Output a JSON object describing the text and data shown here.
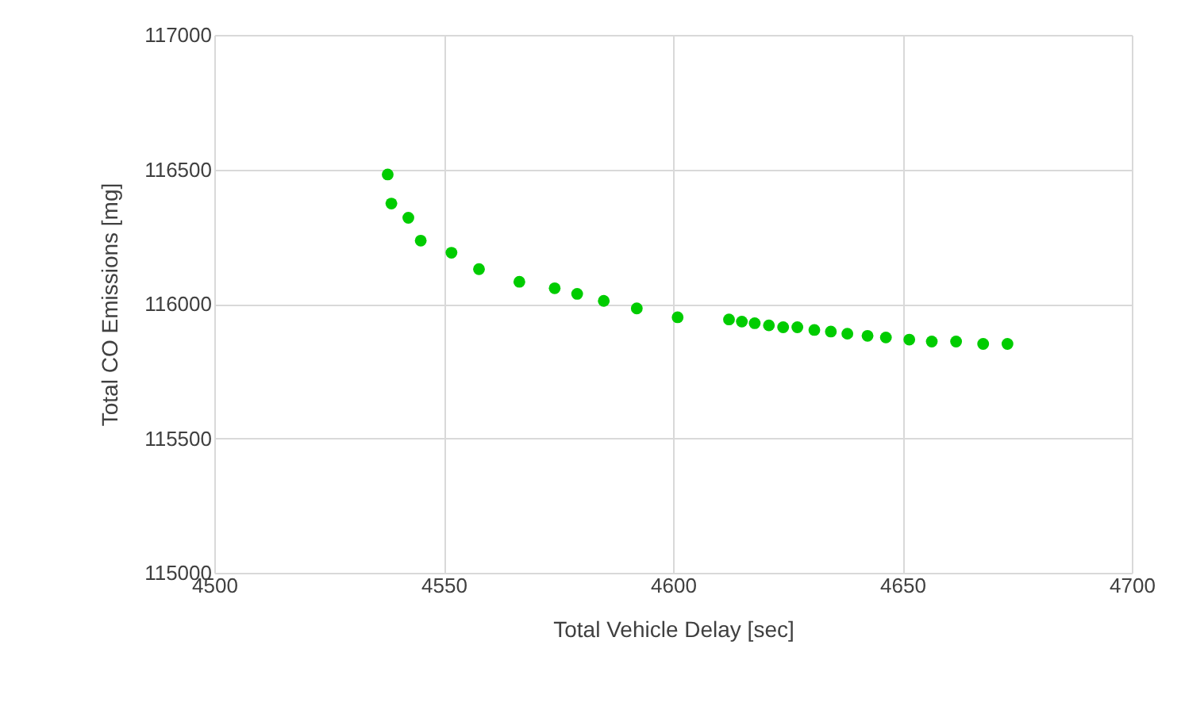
{
  "chart_data": {
    "type": "scatter",
    "xlabel": "Total Vehicle Delay [sec]",
    "ylabel": "Total CO Emissions [mg]",
    "x": [
      4537.8,
      4538.6,
      4542.3,
      4545.0,
      4551.7,
      4557.7,
      4566.5,
      4574.2,
      4579.1,
      4584.9,
      4592.1,
      4601.0,
      4612.2,
      4615.0,
      4617.8,
      4620.9,
      4624.0,
      4627.1,
      4630.8,
      4634.4,
      4638.0,
      4642.4,
      4646.4,
      4651.5,
      4656.4,
      4661.7,
      4667.6,
      4672.9
    ],
    "series": [
      {
        "color": "#00cc00",
        "values": [
          116481,
          116373,
          116320,
          116235,
          116190,
          116129,
          116082,
          116058,
          116037,
          116011,
          115983,
          115950,
          115942,
          115934,
          115928,
          115920,
          115913,
          115913,
          115903,
          115897,
          115889,
          115881,
          115875,
          115867,
          115860,
          115860,
          115851,
          115851
        ]
      }
    ],
    "xlim": [
      4500,
      4700
    ],
    "xticks": [
      4500,
      4550,
      4600,
      4650,
      4700
    ],
    "ylim": [
      115000,
      117000
    ],
    "yticks": [
      115000,
      115500,
      116000,
      116500,
      117000
    ],
    "grid": true,
    "marker": "circle"
  }
}
